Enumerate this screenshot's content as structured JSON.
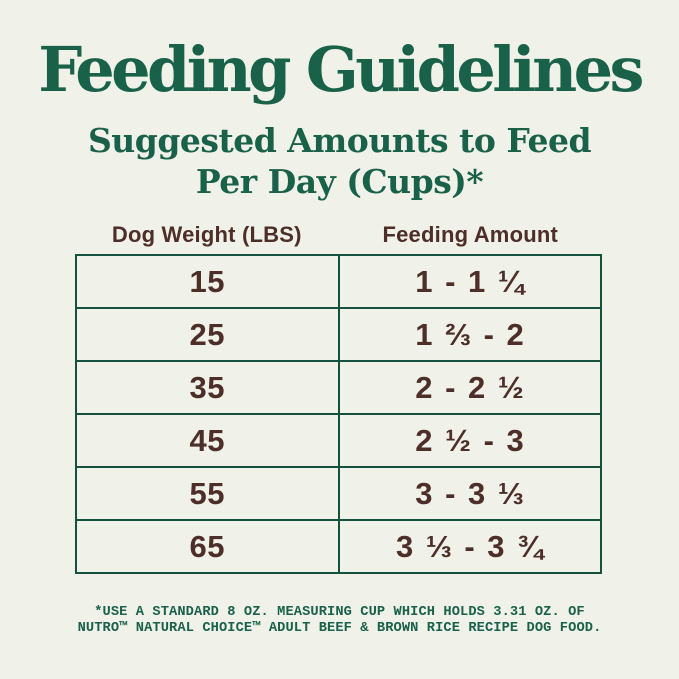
{
  "colors": {
    "background": "#f0f1e9",
    "heading_green": "#1a6149",
    "text_brown": "#4d2e29",
    "table_border_green": "#14523e"
  },
  "title": "Feeding Guidelines",
  "subtitle_line1": "Suggested Amounts to Feed",
  "subtitle_line2": "Per Day (Cups)*",
  "footnote_line1": "*USE A STANDARD 8 OZ. MEASURING CUP WHICH HOLDS 3.31 OZ. OF",
  "footnote_line2": "NUTRO™ NATURAL CHOICE™ ADULT BEEF & BROWN RICE RECIPE DOG FOOD.",
  "chart_data": {
    "type": "table",
    "title": "Feeding Guidelines",
    "subtitle": "Suggested Amounts to Feed Per Day (Cups)*",
    "columns": [
      "Dog Weight (LBS)",
      "Feeding Amount"
    ],
    "rows": [
      [
        "15",
        "1 - 1 ¼"
      ],
      [
        "25",
        "1 ⅔ - 2"
      ],
      [
        "35",
        "2 - 2 ½"
      ],
      [
        "45",
        "2 ½ - 3"
      ],
      [
        "55",
        "3 - 3 ⅓"
      ],
      [
        "65",
        "3 ⅓ - 3 ¾"
      ]
    ],
    "footnote": "*USE A STANDARD 8 OZ. MEASURING CUP WHICH HOLDS 3.31 OZ. OF NUTRO™ NATURAL CHOICE™ ADULT BEEF & BROWN RICE RECIPE DOG FOOD."
  }
}
